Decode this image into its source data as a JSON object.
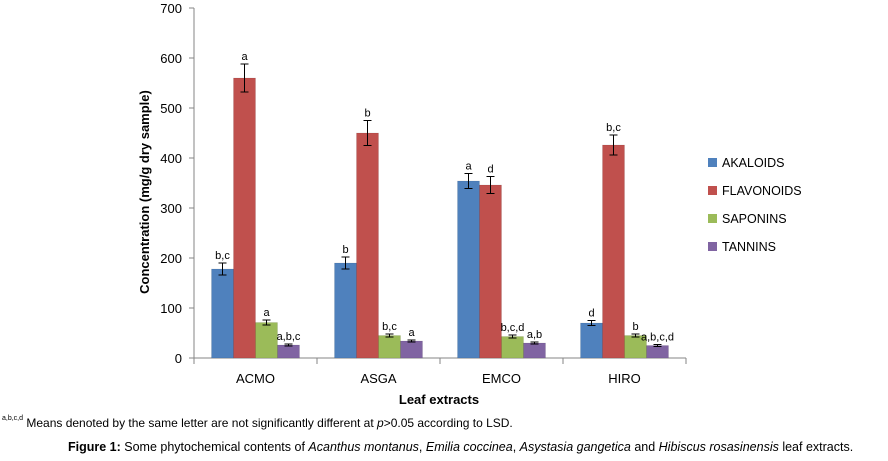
{
  "chart_data": {
    "type": "bar",
    "categories": [
      "ACMO",
      "ASGA",
      "EMCO",
      "HIRO"
    ],
    "xlabel": "Leaf extracts",
    "ylabel": "Concentration (mg/g dry sample)",
    "ylim": [
      0,
      700
    ],
    "yticks": [
      0,
      100,
      200,
      300,
      400,
      500,
      600,
      700
    ],
    "grid": false,
    "legend_position": "right",
    "series": [
      {
        "name": "AKALOIDS",
        "color": "#4f81bd",
        "values": [
          178,
          190,
          354,
          70
        ],
        "errors": [
          12,
          12,
          15,
          5
        ],
        "labels": [
          "b,c",
          "b",
          "a",
          "d"
        ]
      },
      {
        "name": "FLAVONOIDS",
        "color": "#c0504d",
        "values": [
          560,
          450,
          346,
          426
        ],
        "errors": [
          28,
          25,
          17,
          20
        ],
        "labels": [
          "a",
          "b",
          "d",
          "b,c"
        ]
      },
      {
        "name": "SAPONINS",
        "color": "#9bbb59",
        "values": [
          71,
          45,
          43,
          45
        ],
        "errors": [
          5,
          3,
          3,
          3
        ],
        "labels": [
          "a",
          "b,c",
          "b,c,d",
          "b"
        ]
      },
      {
        "name": "TANNINS",
        "color": "#8064a2",
        "values": [
          26,
          34,
          30,
          25
        ],
        "errors": [
          2,
          2,
          2,
          2
        ],
        "labels": [
          "a,b,c",
          "a",
          "a,b",
          "a,b,c,d"
        ]
      }
    ]
  },
  "footnote": {
    "superscript": "a,b,c,d",
    "text_before": " Means denoted by the same letter are not significantly different at ",
    "p": "p",
    "text_after": ">0.05 according to LSD."
  },
  "caption": {
    "label": "Figure 1:",
    "t1": " Some phytochemical contents of ",
    "s1": "Acanthus montanus",
    "t2": ", ",
    "s2": "Emilia coccinea",
    "t3": ", ",
    "s3": "Asystasia gangetica",
    "t4": " and ",
    "s4": "Hibiscus rosasinensis",
    "t5": " leaf extracts."
  }
}
